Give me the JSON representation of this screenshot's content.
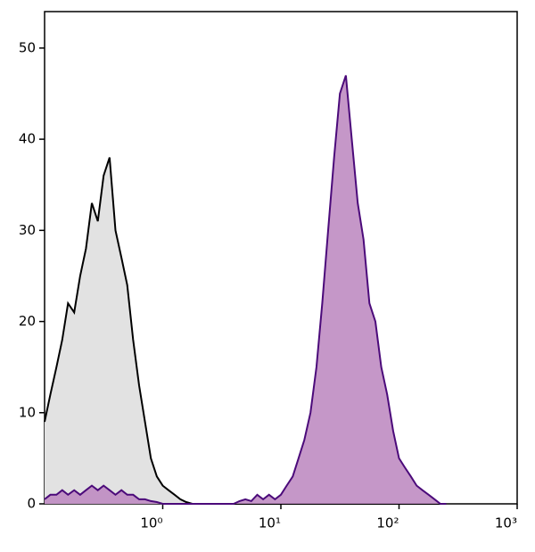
{
  "chart_data": {
    "type": "area",
    "x": [
      0.1,
      0.112,
      0.126,
      0.141,
      0.158,
      0.178,
      0.2,
      0.224,
      0.251,
      0.282,
      0.316,
      0.355,
      0.398,
      0.447,
      0.501,
      0.562,
      0.631,
      0.708,
      0.794,
      0.891,
      1,
      1.12,
      1.26,
      1.41,
      1.58,
      1.78,
      2,
      2.24,
      2.51,
      2.82,
      3.16,
      3.55,
      3.98,
      4.47,
      5.01,
      5.62,
      6.31,
      7.08,
      7.94,
      8.91,
      10,
      11.2,
      12.6,
      14.1,
      15.8,
      17.8,
      20,
      22.4,
      25.1,
      28.2,
      31.6,
      35.5,
      39.8,
      44.7,
      50.1,
      56.2,
      63.1,
      70.8,
      79.4,
      89.1,
      100,
      112,
      126,
      141,
      158,
      178,
      200,
      224,
      251
    ],
    "series": [
      {
        "color": "#000000",
        "fill": "#e2e2e2",
        "values": [
          9,
          12,
          15,
          18,
          22,
          21,
          25,
          28,
          33,
          31,
          36,
          38,
          30,
          27,
          24,
          18,
          13,
          9,
          5,
          3,
          2,
          1.5,
          1,
          0.5,
          0.2,
          0,
          0,
          0,
          0,
          0,
          0,
          0,
          0,
          0,
          0,
          0,
          0,
          0,
          0,
          0,
          0,
          0,
          0,
          0,
          0,
          0,
          0,
          0,
          0,
          0,
          0,
          0,
          0,
          0,
          0,
          0,
          0,
          0,
          0,
          0,
          0,
          0,
          0,
          0,
          0,
          0,
          0,
          0,
          0
        ]
      },
      {
        "color": "#4b0a7a",
        "fill": "#bf8cc2",
        "values": [
          0.5,
          1,
          1,
          1.5,
          1,
          1.5,
          1,
          1.5,
          2,
          1.5,
          2,
          1.5,
          1,
          1.5,
          1,
          1,
          0.5,
          0.5,
          0.3,
          0.2,
          0,
          0,
          0,
          0,
          0,
          0,
          0,
          0,
          0,
          0,
          0,
          0,
          0,
          0.3,
          0.5,
          0.3,
          1,
          0.5,
          1,
          0.5,
          1,
          2,
          3,
          5,
          7,
          10,
          15,
          22,
          30,
          38,
          45,
          47,
          40,
          33,
          29,
          22,
          20,
          15,
          12,
          8,
          5,
          4,
          3,
          2,
          1.5,
          1,
          0.5,
          0,
          0
        ]
      }
    ],
    "xlog": true,
    "xlim": [
      0.1,
      1000
    ],
    "xticks": [
      {
        "value": 1,
        "label": "10⁰"
      },
      {
        "value": 10,
        "label": "10¹"
      },
      {
        "value": 100,
        "label": "10²"
      },
      {
        "value": 1000,
        "label": "10³"
      }
    ],
    "ylim": [
      0,
      54
    ],
    "yticks": [
      0,
      10,
      20,
      30,
      40,
      50
    ]
  }
}
